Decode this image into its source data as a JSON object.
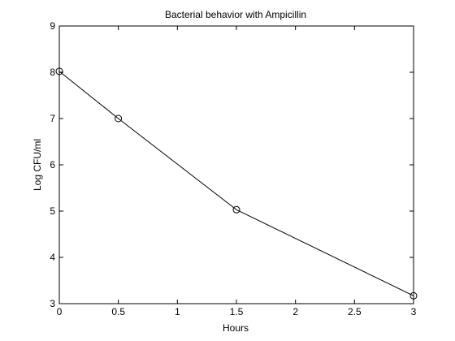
{
  "chart_data": {
    "type": "line",
    "title": "Bacterial behavior with Ampicillin",
    "xlabel": "Hours",
    "ylabel": "Log CFU/ml",
    "xlim": [
      0,
      3
    ],
    "ylim": [
      3,
      9
    ],
    "xticks": [
      0,
      0.5,
      1,
      1.5,
      2,
      2.5,
      3
    ],
    "xtick_labels": [
      "0",
      "0.5",
      "1",
      "1.5",
      "2",
      "2.5",
      "3"
    ],
    "yticks": [
      3,
      4,
      5,
      6,
      7,
      8,
      9
    ],
    "ytick_labels": [
      "3",
      "4",
      "5",
      "6",
      "7",
      "8",
      "9"
    ],
    "grid": false,
    "series": [
      {
        "marker": "circle",
        "color": "#000000",
        "x": [
          0,
          0.5,
          1.5,
          3
        ],
        "y": [
          8.02,
          7.0,
          5.03,
          3.17
        ]
      }
    ]
  }
}
